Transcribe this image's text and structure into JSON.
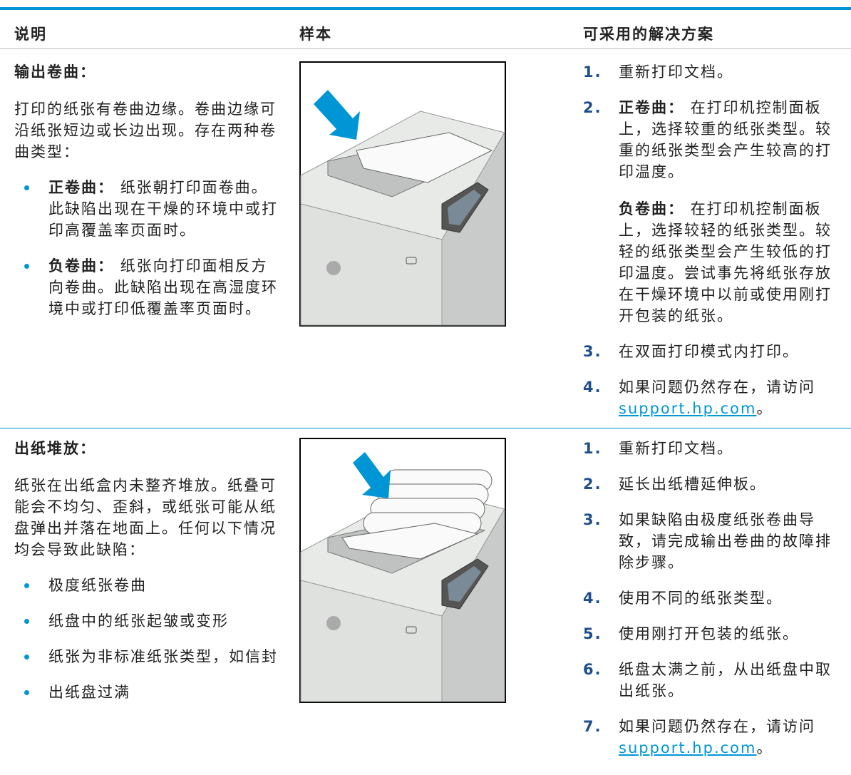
{
  "header": {
    "description": "说明",
    "sample": "样本",
    "solutions": "可采用的解决方案"
  },
  "rows": [
    {
      "title": "输出卷曲：",
      "intro": "打印的纸张有卷曲边缘。卷曲边缘可沿纸张短边或长边出现。存在两种卷曲类型：",
      "bullets": [
        {
          "label": "正卷曲：",
          "text": "纸张朝打印面卷曲。此缺陷出现在干燥的环境中或打印高覆盖率页面时。"
        },
        {
          "label": "负卷曲：",
          "text": "纸张向打印面相反方向卷曲。此缺陷出现在高湿度环境中或打印低覆盖率页面时。"
        }
      ],
      "steps": [
        {
          "number": "1.",
          "text": "重新打印文档。"
        },
        {
          "number": "2.",
          "label": "正卷曲：",
          "text": "在打印机控制面板上，选择较重的纸张类型。较重的纸张类型会产生较高的打印温度。",
          "sub_label": "负卷曲：",
          "sub_text": "在打印机控制面板上，选择较轻的纸张类型。较轻的纸张类型会产生较低的打印温度。尝试事先将纸张存放在干燥环境中以前或使用刚打开包装的纸张。"
        },
        {
          "number": "3.",
          "text": "在双面打印模式内打印。"
        },
        {
          "number": "4.",
          "text": "如果问题仍然存在，请访问",
          "link": "support.hp.com",
          "after": "。"
        }
      ]
    },
    {
      "title": "出纸堆放：",
      "intro": "纸张在出纸盒内未整齐堆放。纸叠可能会不均匀、歪斜，或纸张可能从纸盘弹出并落在地面上。任何以下情况均会导致此缺陷：",
      "bullets": [
        {
          "text": "极度纸张卷曲"
        },
        {
          "text": "纸盘中的纸张起皱或变形"
        },
        {
          "text": "纸张为非标准纸张类型，如信封"
        },
        {
          "text": "出纸盘过满"
        }
      ],
      "steps": [
        {
          "number": "1.",
          "text": "重新打印文档。"
        },
        {
          "number": "2.",
          "text": "延长出纸槽延伸板。"
        },
        {
          "number": "3.",
          "text": "如果缺陷由极度纸张卷曲导致，请完成输出卷曲的故障排除步骤。"
        },
        {
          "number": "4.",
          "text": "使用不同的纸张类型。"
        },
        {
          "number": "5.",
          "text": "使用刚打开包装的纸张。"
        },
        {
          "number": "6.",
          "text": "纸盘太满之前，从出纸盘中取出纸张。"
        },
        {
          "number": "7.",
          "text": "如果问题仍然存在，请访问",
          "link": "support.hp.com",
          "after": "。"
        }
      ]
    }
  ]
}
